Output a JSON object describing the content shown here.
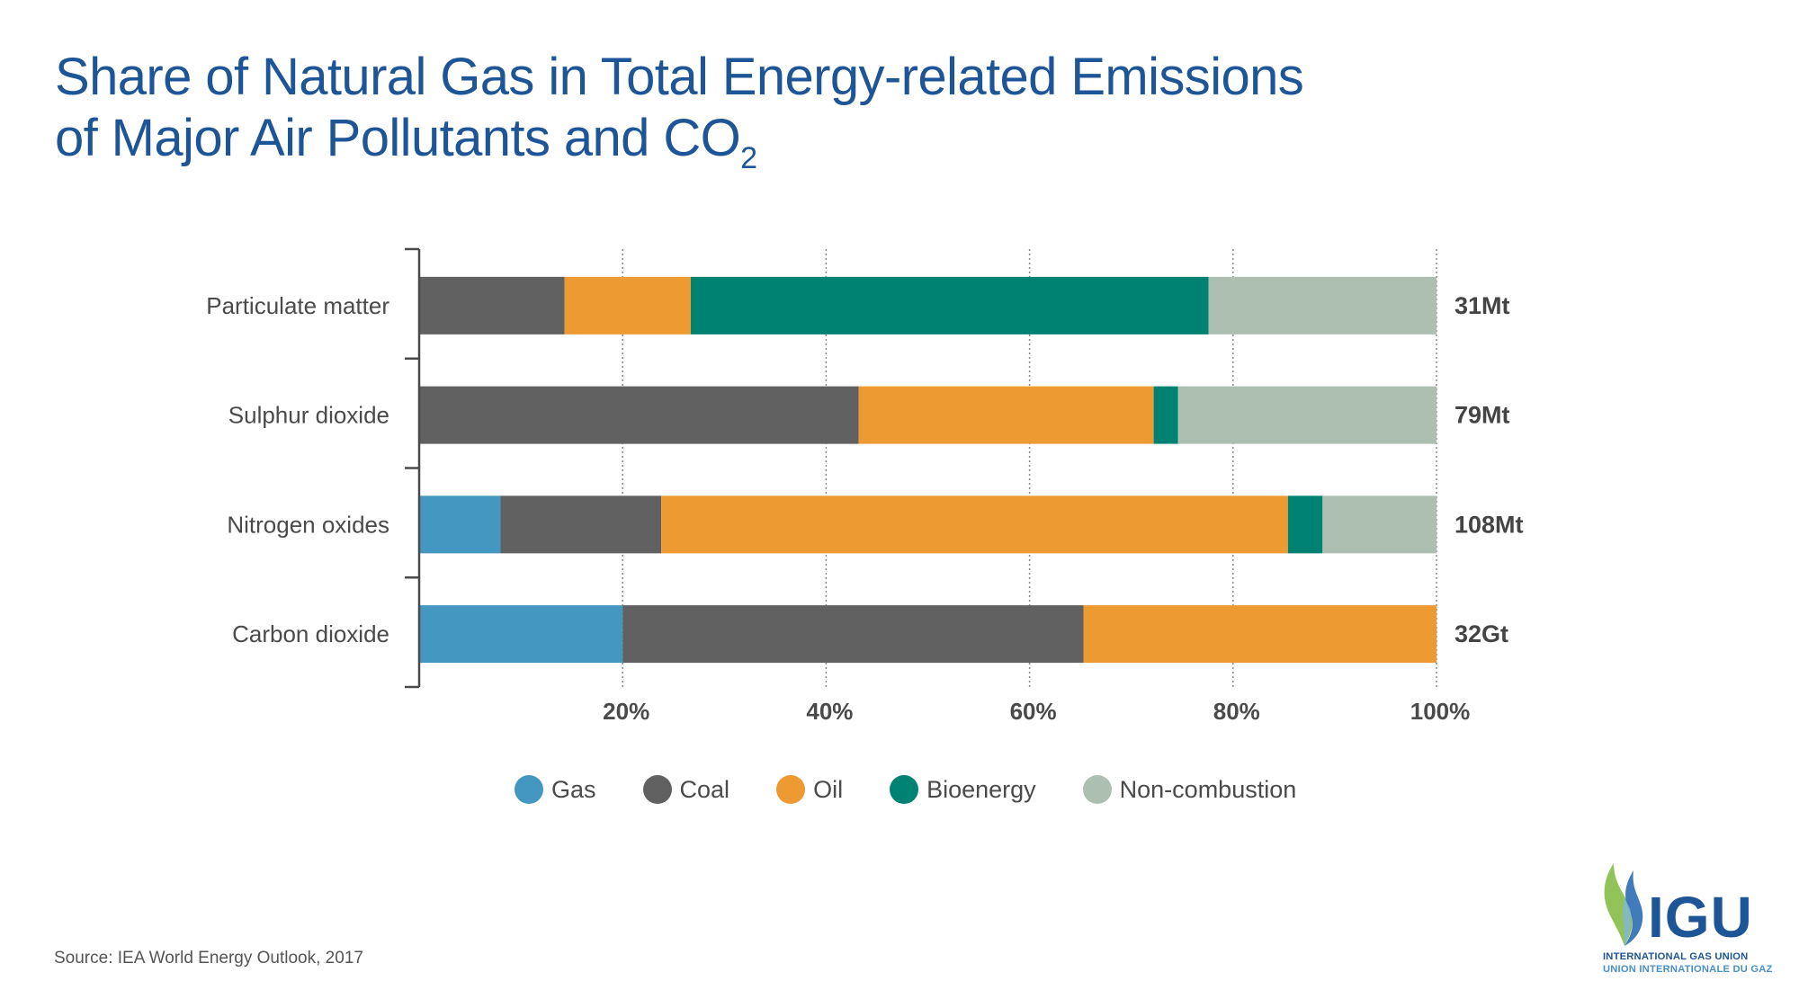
{
  "title": {
    "line1": "Share of Natural Gas in Total Energy-related Emissions",
    "line2_main": "of Major Air Pollutants and CO",
    "line2_sub": "2"
  },
  "colors": {
    "title": "#1e5597",
    "Gas": "#4497c1",
    "Coal": "#616161",
    "Oil": "#ec9a31",
    "Bioenergy": "#008272",
    "Non-combustion": "#adbfb1"
  },
  "chart_data": {
    "type": "bar",
    "orientation": "horizontal",
    "stacked": true,
    "title": "Share of Natural Gas in Total Energy-related Emissions of Major Air Pollutants and CO2",
    "xlabel": "",
    "ylabel": "",
    "xlim": [
      0,
      100
    ],
    "xticks": [
      20,
      40,
      60,
      80,
      100
    ],
    "xtick_labels": [
      "20%",
      "40%",
      "60%",
      "80%",
      "100%"
    ],
    "grid": "vertical dotted",
    "legend_position": "bottom-center",
    "categories": [
      "Particulate matter",
      "Sulphur dioxide",
      "Nitrogen oxides",
      "Carbon dioxide"
    ],
    "totals": [
      "31Mt",
      "79Mt",
      "108Mt",
      "32Gt"
    ],
    "series": [
      {
        "name": "Gas",
        "values": [
          0,
          0,
          8.0,
          20.0
        ]
      },
      {
        "name": "Coal",
        "values": [
          14.3,
          43.2,
          15.8,
          45.3
        ]
      },
      {
        "name": "Oil",
        "values": [
          12.4,
          29.0,
          61.6,
          34.7
        ]
      },
      {
        "name": "Bioenergy",
        "values": [
          50.9,
          2.4,
          3.4,
          0
        ]
      },
      {
        "name": "Non-combustion",
        "values": [
          22.4,
          25.4,
          11.2,
          0
        ]
      }
    ]
  },
  "legend": [
    {
      "label": "Gas"
    },
    {
      "label": "Coal"
    },
    {
      "label": "Oil"
    },
    {
      "label": "Bioenergy"
    },
    {
      "label": "Non-combustion"
    }
  ],
  "source": "Source: IEA World Energy Outlook, 2017",
  "logo": {
    "word": "IGU",
    "line1": "INTERNATIONAL GAS UNION",
    "line2": "UNION INTERNATIONALE DU GAZ"
  }
}
